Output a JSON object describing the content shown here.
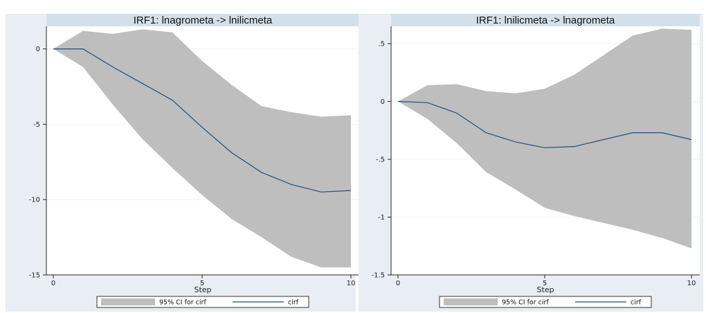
{
  "colors": {
    "background": "#e8eef3",
    "plot_background": "#ffffff",
    "title_bar": "#d4e0e9",
    "ci_band": "#bebebe",
    "line": "#1f4e79",
    "gridline": "#eef1f4"
  },
  "chart_data": [
    {
      "type": "area",
      "title": "IRF1: lnagrometa -> lnilicmeta",
      "xlabel": "Step",
      "ylabel": "",
      "xlim": [
        0,
        10
      ],
      "ylim": [
        -15,
        1.5
      ],
      "xticks": [
        "0",
        "5",
        "10"
      ],
      "yticks": [
        "0",
        "-5",
        "-10",
        "-15"
      ],
      "grid": true,
      "legend": "bottom",
      "x": [
        0,
        1,
        2,
        3,
        4,
        5,
        6,
        7,
        8,
        9,
        10
      ],
      "series": [
        {
          "name": "95% CI for cirf",
          "kind": "band",
          "upper": [
            0,
            1.2,
            1.0,
            1.3,
            1.1,
            -0.8,
            -2.4,
            -3.8,
            -4.2,
            -4.5,
            -4.4
          ],
          "lower": [
            0,
            -1.2,
            -3.7,
            -6.0,
            -7.9,
            -9.7,
            -11.3,
            -12.5,
            -13.8,
            -14.5,
            -14.5
          ]
        },
        {
          "name": "cirf",
          "kind": "line",
          "values": [
            0,
            0,
            -1.2,
            -2.3,
            -3.4,
            -5.2,
            -6.9,
            -8.2,
            -9.0,
            -9.5,
            -9.4
          ]
        }
      ]
    },
    {
      "type": "area",
      "title": "IRF1: lnilicmeta -> lnagrometa",
      "xlabel": "Step",
      "ylabel": "",
      "xlim": [
        0,
        10
      ],
      "ylim": [
        -1.5,
        0.65
      ],
      "xticks": [
        "0",
        "5",
        "10"
      ],
      "yticks": [
        ".5",
        "0",
        "-.5",
        "-1",
        "-1.5"
      ],
      "grid": true,
      "legend": "bottom",
      "x": [
        0,
        1,
        2,
        3,
        4,
        5,
        6,
        7,
        8,
        9,
        10
      ],
      "series": [
        {
          "name": "95% CI for cirf",
          "kind": "band",
          "upper": [
            0,
            0.14,
            0.15,
            0.09,
            0.07,
            0.11,
            0.23,
            0.4,
            0.57,
            0.63,
            0.62
          ],
          "lower": [
            0,
            -0.15,
            -0.36,
            -0.61,
            -0.76,
            -0.92,
            -0.99,
            -1.05,
            -1.11,
            -1.18,
            -1.27
          ]
        },
        {
          "name": "cirf",
          "kind": "line",
          "values": [
            0,
            -0.01,
            -0.1,
            -0.27,
            -0.35,
            -0.4,
            -0.39,
            -0.33,
            -0.27,
            -0.27,
            -0.33
          ]
        }
      ]
    }
  ]
}
